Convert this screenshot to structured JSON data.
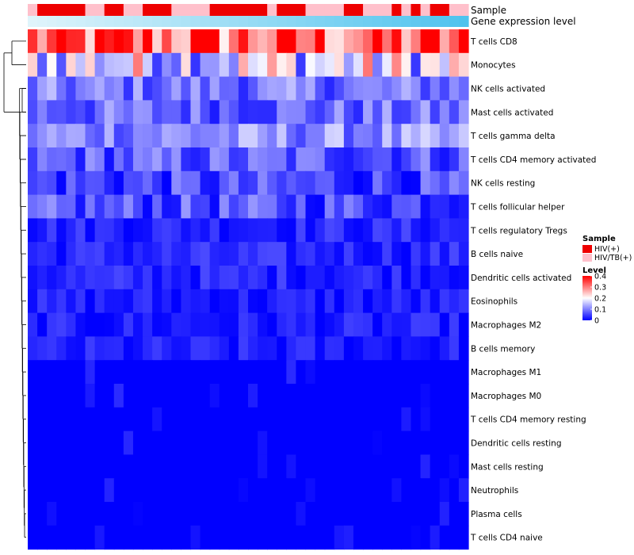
{
  "chart_data": {
    "type": "heatmap",
    "annotation_rows": [
      {
        "label": "Sample"
      },
      {
        "label": "Gene expression level"
      }
    ],
    "rows": [
      "T cells CD8",
      "Monocytes",
      "NK cells activated",
      "Mast cells activated",
      "T cells gamma delta",
      "T cells CD4 memory activated",
      "NK cells resting",
      "T cells follicular helper",
      "T cells regulatory  Tregs",
      "B cells naive",
      "Dendritic cells activated",
      "Eosinophils",
      "Macrophages M2",
      "B cells memory",
      "Macrophages M1",
      "Macrophages M0",
      "T cells CD4 memory resting",
      "Dendritic cells resting",
      "Mast cells resting",
      "Neutrophils",
      "Plasma cells",
      "T cells CD4 naive"
    ],
    "row_base_levels": [
      0.32,
      0.18,
      0.09,
      0.08,
      0.11,
      0.07,
      0.05,
      0.06,
      0.03,
      0.03,
      0.03,
      0.02,
      0.02,
      0.02,
      0.01,
      0.01,
      0.005,
      0.005,
      0.005,
      0.003,
      0.006,
      0.005
    ],
    "num_samples": 46,
    "sample_groups": [
      "HIV/TB(+)",
      "HIV(+)",
      "HIV(+)",
      "HIV(+)",
      "HIV(+)",
      "HIV(+)",
      "HIV/TB(+)",
      "HIV/TB(+)",
      "HIV(+)",
      "HIV(+)",
      "HIV/TB(+)",
      "HIV/TB(+)",
      "HIV(+)",
      "HIV(+)",
      "HIV(+)",
      "HIV/TB(+)",
      "HIV/TB(+)",
      "HIV/TB(+)",
      "HIV/TB(+)",
      "HIV(+)",
      "HIV(+)",
      "HIV(+)",
      "HIV(+)",
      "HIV(+)",
      "HIV(+)",
      "HIV/TB(+)",
      "HIV(+)",
      "HIV(+)",
      "HIV(+)",
      "HIV/TB(+)",
      "HIV/TB(+)",
      "HIV/TB(+)",
      "HIV/TB(+)",
      "HIV(+)",
      "HIV(+)",
      "HIV/TB(+)",
      "HIV/TB(+)",
      "HIV/TB(+)",
      "HIV(+)",
      "HIV/TB(+)",
      "HIV(+)",
      "HIV/TB(+)",
      "HIV(+)",
      "HIV(+)",
      "HIV/TB(+)",
      "HIV/TB(+)"
    ],
    "legends": {
      "sample": {
        "title": "Sample",
        "items": [
          {
            "label": "HIV(+)",
            "color": "#ee0000"
          },
          {
            "label": "HIV/TB(+)",
            "color": "#ffc0cb"
          }
        ]
      },
      "level": {
        "title": "Level",
        "ticks": [
          "0.4",
          "0.3",
          "0.2",
          "0.1",
          "0"
        ],
        "tick_values": [
          0.4,
          0.3,
          0.2,
          0.1,
          0
        ],
        "range": [
          0,
          0.4
        ]
      }
    },
    "colors": {
      "low": "#0000ff",
      "mid": "#ffffff",
      "high": "#ff0000",
      "midpoint": 0.2,
      "expr_start": "#dff4fb",
      "expr_end": "#4fc3ee"
    }
  }
}
